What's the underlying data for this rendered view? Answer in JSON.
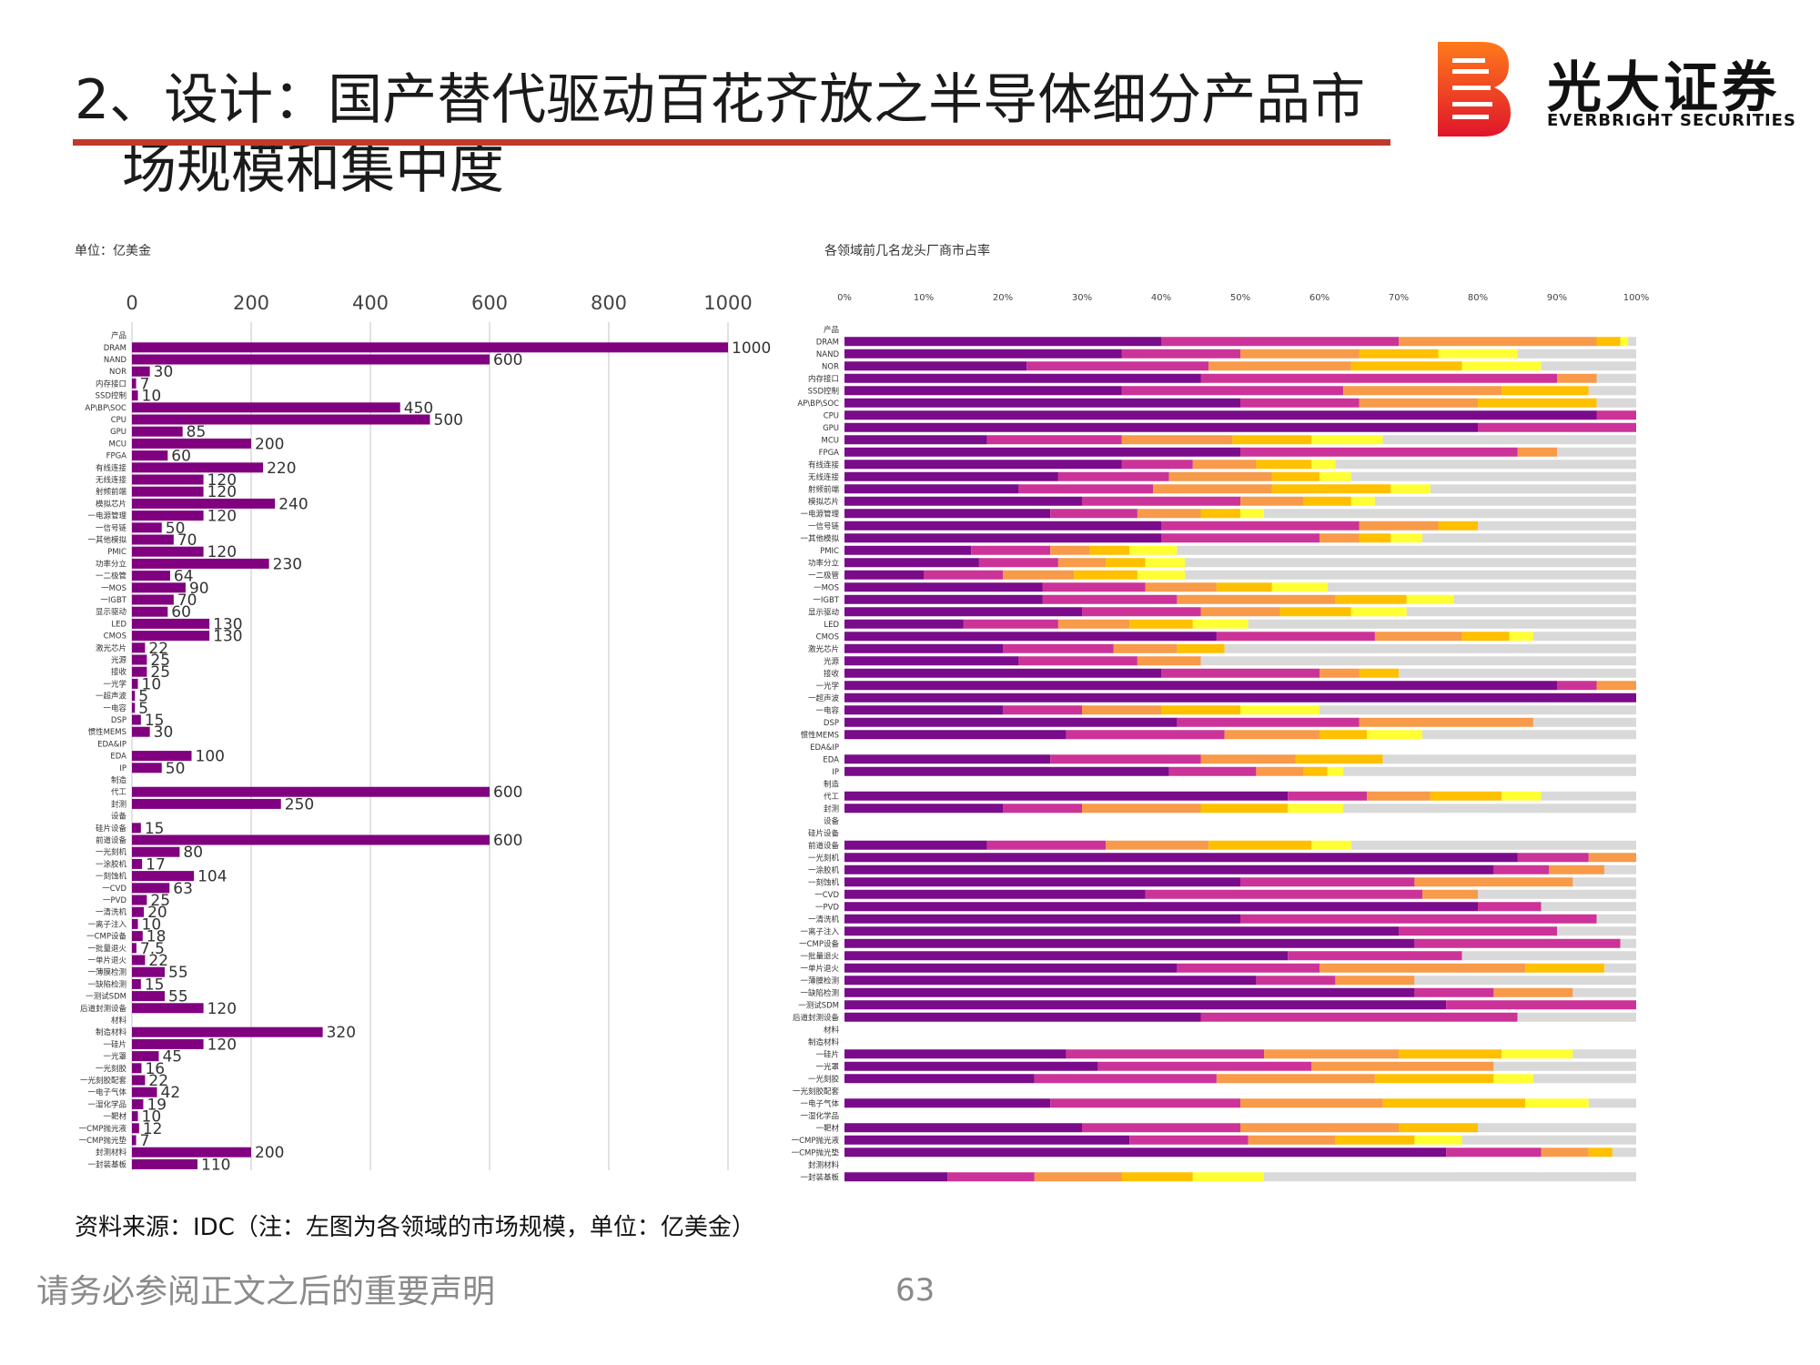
{
  "header": {
    "title_line1": "2、设计：国产替代驱动百花齐放之半导体细分产品市",
    "title_line2": "场规模和集中度",
    "brand_cn": "光大证券",
    "brand_en": "EVERBRIGHT SECURITIES"
  },
  "footer": {
    "source": "资料来源：IDC（注：左图为各领域的市场规模，单位：亿美金）",
    "disclaimer": "请务必参阅正文之后的重要声明",
    "page": "63"
  },
  "colors": {
    "accent_line": "#c0392b",
    "bar": "#800080",
    "share_palette": [
      "#7a0b8a",
      "#cc3399",
      "#f79a4a",
      "#ffc000",
      "#ffff33",
      "#d9d9d9"
    ]
  },
  "chart_data": [
    {
      "type": "bar",
      "orientation": "horizontal",
      "title": "单位：亿美金",
      "xlim": [
        0,
        1000
      ],
      "xticks": [
        "0",
        "200",
        "400",
        "600",
        "800",
        "1000"
      ],
      "grid": true,
      "categories": [
        "产品",
        "DRAM",
        "NAND",
        "NOR",
        "内存接口",
        "SSD控制",
        "AP\\BP\\SOC",
        "CPU",
        "GPU",
        "MCU",
        "FPGA",
        "有线连接",
        "无线连接",
        "射频前端",
        "模拟芯片",
        "一电源管理",
        "一信号链",
        "一其他模拟",
        "PMIC",
        "功率分立",
        "一二极管",
        "一MOS",
        "一IGBT",
        "显示驱动",
        "LED",
        "CMOS",
        "激光芯片",
        "光源",
        "接收",
        "一光学",
        "一超声波",
        "一电容",
        "DSP",
        "惯性MEMS",
        "EDA&IP",
        "EDA",
        "IP",
        "制造",
        "代工",
        "封测",
        "设备",
        "硅片设备",
        "前道设备",
        "一光刻机",
        "一涂胶机",
        "一刻蚀机",
        "一CVD",
        "一PVD",
        "一清洗机",
        "一离子注入",
        "一CMP设备",
        "一批量退火",
        "一单片退火",
        "一薄膜检测",
        "一缺陷检测",
        "一测试SDM",
        "后道封测设备",
        "材料",
        "制造材料",
        "一硅片",
        "一光罩",
        "一光刻胶",
        "一光刻胶配套",
        "一电子气体",
        "一湿化学品",
        "一靶材",
        "一CMP抛光液",
        "一CMP抛光垫",
        "封测材料",
        "一封装基板"
      ],
      "values": [
        null,
        1000,
        600,
        30,
        7,
        10,
        450,
        500,
        85,
        200,
        60,
        220,
        120,
        120,
        240,
        120,
        50,
        70,
        120,
        230,
        64,
        90,
        70,
        60,
        130,
        130,
        22,
        25,
        25,
        10,
        5,
        5,
        15,
        30,
        null,
        100,
        50,
        null,
        600,
        250,
        null,
        15,
        600,
        80,
        17,
        104,
        63,
        25,
        20,
        10,
        18,
        7.5,
        22,
        55,
        15,
        55,
        120,
        null,
        320,
        120,
        45,
        16,
        22,
        42,
        19,
        10,
        12,
        7,
        200,
        110
      ],
      "labels": [
        "",
        "1000",
        "600",
        "30",
        "7",
        "10",
        "450",
        "500",
        "85",
        "200",
        "60",
        "220",
        "120",
        "120",
        "240",
        "120",
        "50",
        "70",
        "120",
        "230",
        "64",
        "90",
        "70",
        "60",
        "130",
        "130",
        "22",
        "25",
        "25",
        "10",
        "5",
        "5",
        "15",
        "30",
        "",
        "100",
        "50",
        "",
        "600",
        "250",
        "",
        "15",
        "600",
        "80",
        "17",
        "104",
        "63",
        "25",
        "20",
        "10",
        "18",
        "7.5",
        "22",
        "55",
        "15",
        "55",
        "120",
        "",
        "320",
        "120",
        "45",
        "16",
        "22",
        "42",
        "19",
        "10",
        "12",
        "7",
        "200",
        "110"
      ]
    },
    {
      "type": "bar",
      "orientation": "horizontal",
      "stacked": true,
      "title": "各领域前几名龙头厂商市占率",
      "xlim": [
        0,
        100
      ],
      "xticks": [
        "0%",
        "10%",
        "20%",
        "30%",
        "40%",
        "50%",
        "60%",
        "70%",
        "80%",
        "90%",
        "100%"
      ],
      "categories": [
        "产品",
        "DRAM",
        "NAND",
        "NOR",
        "内存接口",
        "SSD控制",
        "AP\\BP\\SOC",
        "CPU",
        "GPU",
        "MCU",
        "FPGA",
        "有线连接",
        "无线连接",
        "射频前端",
        "模拟芯片",
        "一电源管理",
        "一信号链",
        "一其他模拟",
        "PMIC",
        "功率分立",
        "一二极管",
        "一MOS",
        "一IGBT",
        "显示驱动",
        "LED",
        "CMOS",
        "激光芯片",
        "光源",
        "接收",
        "一光学",
        "一超声波",
        "一电容",
        "DSP",
        "惯性MEMS",
        "EDA&IP",
        "EDA",
        "IP",
        "制造",
        "代工",
        "封测",
        "设备",
        "硅片设备",
        "前道设备",
        "一光刻机",
        "一涂胶机",
        "一刻蚀机",
        "一CVD",
        "一PVD",
        "一清洗机",
        "一离子注入",
        "一CMP设备",
        "一批量退火",
        "一单片退火",
        "一薄膜检测",
        "一缺陷检测",
        "一测试SDM",
        "后道封测设备",
        "材料",
        "制造材料",
        "一硅片",
        "一光罩",
        "一光刻胶",
        "一光刻胶配套",
        "一电子气体",
        "一湿化学品",
        "一靶材",
        "一CMP抛光液",
        "一CMP抛光垫",
        "封测材料",
        "一封装基板"
      ],
      "shares": [
        null,
        [
          40,
          30,
          25,
          3,
          1
        ],
        [
          35,
          15,
          15,
          10,
          10
        ],
        [
          23,
          23,
          18,
          14,
          10
        ],
        [
          45,
          45,
          5,
          0,
          0
        ],
        [
          35,
          28,
          20,
          11,
          0
        ],
        [
          50,
          15,
          15,
          15,
          0
        ],
        [
          95,
          5,
          0,
          0,
          0
        ],
        [
          80,
          20,
          0,
          0,
          0
        ],
        [
          18,
          17,
          14,
          10,
          9
        ],
        [
          50,
          35,
          5,
          0,
          0
        ],
        [
          35,
          9,
          8,
          7,
          3
        ],
        [
          27,
          14,
          13,
          6,
          4
        ],
        [
          22,
          17,
          15,
          15,
          5
        ],
        [
          30,
          20,
          8,
          6,
          3
        ],
        [
          26,
          11,
          8,
          5,
          3
        ],
        [
          40,
          25,
          10,
          5,
          0
        ],
        [
          40,
          20,
          5,
          4,
          4
        ],
        [
          16,
          10,
          5,
          5,
          6
        ],
        [
          17,
          10,
          6,
          5,
          5
        ],
        [
          10,
          10,
          9,
          8,
          6
        ],
        [
          25,
          13,
          9,
          7,
          7
        ],
        [
          25,
          17,
          20,
          9,
          6
        ],
        [
          30,
          15,
          10,
          9,
          7
        ],
        [
          15,
          12,
          9,
          8,
          7
        ],
        [
          47,
          20,
          11,
          6,
          3
        ],
        [
          20,
          14,
          8,
          6,
          0
        ],
        [
          22,
          15,
          8,
          0,
          0
        ],
        [
          40,
          20,
          5,
          5,
          0
        ],
        [
          90,
          5,
          5,
          0,
          0
        ],
        [
          100,
          0,
          0,
          0,
          0
        ],
        [
          20,
          10,
          10,
          10,
          10
        ],
        [
          42,
          23,
          22,
          0,
          0
        ],
        [
          28,
          20,
          12,
          6,
          7
        ],
        null,
        [
          26,
          19,
          12,
          11,
          0
        ],
        [
          41,
          11,
          6,
          3,
          2
        ],
        null,
        [
          56,
          10,
          8,
          9,
          5
        ],
        [
          20,
          10,
          15,
          11,
          7
        ],
        null,
        null,
        [
          18,
          15,
          13,
          13,
          5
        ],
        [
          85,
          9,
          6,
          0,
          0
        ],
        [
          82,
          7,
          7,
          0,
          0
        ],
        [
          50,
          22,
          20,
          0,
          0
        ],
        [
          38,
          35,
          7,
          0,
          0
        ],
        [
          80,
          8,
          0,
          0,
          0
        ],
        [
          50,
          45,
          0,
          0,
          0
        ],
        [
          70,
          20,
          0,
          0,
          0
        ],
        [
          72,
          26,
          0,
          0,
          0
        ],
        [
          56,
          22,
          0,
          0,
          0
        ],
        [
          42,
          18,
          26,
          10,
          0
        ],
        [
          52,
          10,
          10,
          0,
          0
        ],
        [
          72,
          10,
          10,
          0,
          0
        ],
        [
          76,
          24,
          0,
          0,
          0
        ],
        [
          45,
          40,
          0,
          0,
          0
        ],
        null,
        null,
        [
          28,
          25,
          17,
          13,
          9
        ],
        [
          32,
          27,
          23,
          0,
          0
        ],
        [
          24,
          23,
          20,
          15,
          5
        ],
        null,
        [
          26,
          24,
          18,
          18,
          8
        ],
        null,
        [
          30,
          20,
          20,
          10,
          0
        ],
        [
          36,
          15,
          11,
          10,
          6
        ],
        [
          76,
          12,
          6,
          3,
          0
        ],
        null,
        [
          13,
          11,
          11,
          9,
          9
        ]
      ]
    }
  ]
}
